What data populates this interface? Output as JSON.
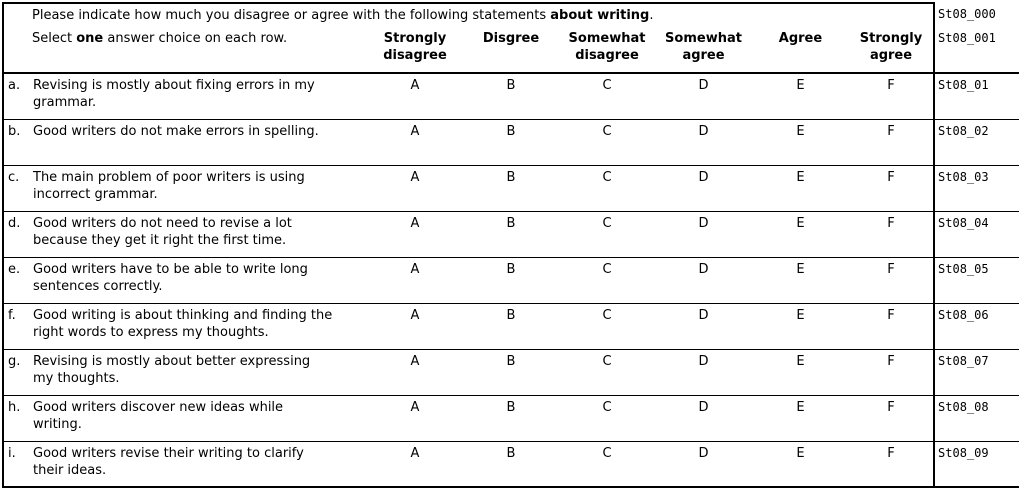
{
  "intro": {
    "prefix": "Please indicate how much you disagree or agree with the following statements ",
    "bold": "about writing",
    "suffix": ".",
    "code": "St08_000"
  },
  "select": {
    "prefix": "Select ",
    "bold": "one",
    "suffix": " answer choice on each row.",
    "code": "St08_001"
  },
  "columns": [
    "Strongly\ndisagree",
    "Disgree",
    "Somewhat\ndisagree",
    "Somewhat\nagree",
    "Agree",
    "Strongly\nagree"
  ],
  "choice_letters": [
    "A",
    "B",
    "C",
    "D",
    "E",
    "F"
  ],
  "rows": [
    {
      "letter": "a.",
      "statement": "Revising is mostly about fixing errors in my\ngrammar.",
      "code": "St08_01"
    },
    {
      "letter": "b.",
      "statement": "Good writers do not make errors in spelling.",
      "code": "St08_02"
    },
    {
      "letter": "c.",
      "statement": "The main problem of poor writers is using\nincorrect grammar.",
      "code": "St08_03"
    },
    {
      "letter": "d.",
      "statement": "Good writers do not need to revise a lot\nbecause they get it right the first time.",
      "code": "St08_04"
    },
    {
      "letter": "e.",
      "statement": "Good writers have to be able to write long\nsentences correctly.",
      "code": "St08_05"
    },
    {
      "letter": "f.",
      "statement": "Good writing is about thinking and finding the\nright words to express my thoughts.",
      "code": "St08_06"
    },
    {
      "letter": "g.",
      "statement": "Revising is mostly about better expressing\nmy thoughts.",
      "code": "St08_07"
    },
    {
      "letter": "h.",
      "statement": "Good writers discover new ideas while\nwriting.",
      "code": "St08_08"
    },
    {
      "letter": "i.",
      "statement": "Good writers revise their writing to clarify\ntheir ideas.",
      "code": "St08_09"
    }
  ],
  "colors": {
    "background": "#ffffff",
    "text": "#000000",
    "border": "#000000"
  }
}
